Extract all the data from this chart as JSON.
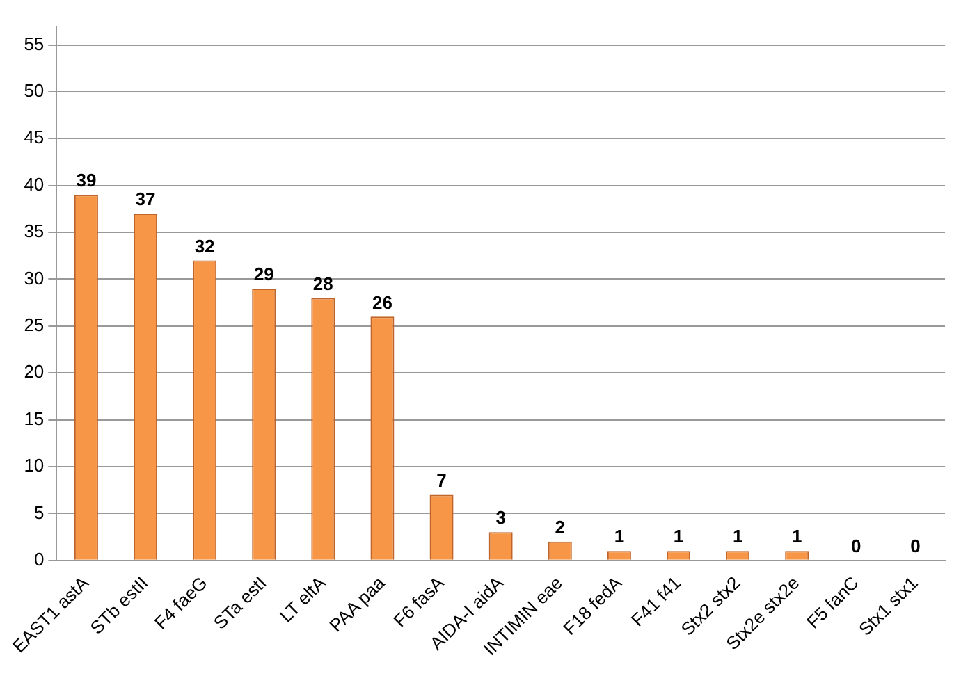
{
  "chart_data": {
    "type": "bar",
    "categories": [
      "EAST1 astA",
      "STb estII",
      "F4 faeG",
      "STa estI",
      "LT eltA",
      "PAA paa",
      "F6 fasA",
      "AIDA-I aidA",
      "INTIMIN eae",
      "F18 fedA",
      "F41 f41",
      "Stx2 stx2",
      "Stx2e stx2e",
      "F5 fanC",
      "Stx1 stx1"
    ],
    "values": [
      39,
      37,
      32,
      29,
      28,
      26,
      7,
      3,
      2,
      1,
      1,
      1,
      1,
      0,
      0
    ],
    "color": "#f79646",
    "ylim": [
      0,
      57
    ],
    "yticks": [
      0,
      5,
      10,
      15,
      20,
      25,
      30,
      35,
      40,
      45,
      50,
      55
    ],
    "grid": "y",
    "data_labels": true
  }
}
